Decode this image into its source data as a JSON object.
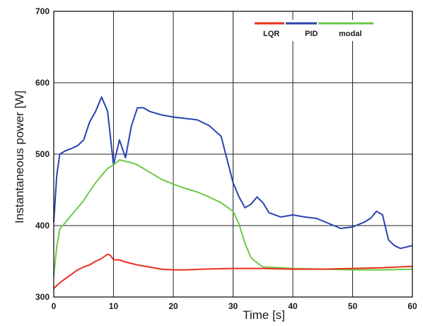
{
  "chart_data": {
    "type": "line",
    "title": "",
    "xlabel": "Time [s]",
    "ylabel": "Instantaneous power [W]",
    "xlim": [
      0,
      60
    ],
    "ylim": [
      300,
      700
    ],
    "xticks": [
      "0",
      "10",
      "20",
      "30",
      "40",
      "50",
      "60"
    ],
    "yticks": [
      "300",
      "400",
      "500",
      "600",
      "700"
    ],
    "grid": true,
    "legend_position": "top-right",
    "series": [
      {
        "name": "LQR",
        "color": "#e8311a",
        "x": [
          0,
          1,
          2,
          3,
          4,
          5,
          6,
          7,
          8,
          9,
          9.5,
          10,
          11,
          12,
          14,
          16,
          18,
          20,
          22,
          25,
          30,
          35,
          40,
          45,
          50,
          55,
          60
        ],
        "y": [
          312,
          320,
          326,
          332,
          338,
          342,
          345,
          350,
          354,
          360,
          358,
          352,
          352,
          349,
          345,
          342,
          339,
          338,
          338,
          339,
          340,
          340,
          339,
          339,
          340,
          341,
          343
        ]
      },
      {
        "name": "PID",
        "color": "#2a43b0",
        "x": [
          0,
          0.5,
          1,
          2,
          3,
          4,
          5,
          6,
          7,
          8,
          9,
          10,
          11,
          12,
          13,
          14,
          15,
          16,
          18,
          20,
          22,
          24,
          26,
          28,
          30,
          31,
          32,
          33,
          34,
          35,
          36,
          38,
          40,
          42,
          44,
          46,
          48,
          50,
          52,
          53,
          54,
          55,
          56,
          57,
          58,
          60
        ],
        "y": [
          405,
          470,
          500,
          505,
          508,
          512,
          520,
          545,
          560,
          580,
          560,
          485,
          520,
          495,
          540,
          565,
          565,
          560,
          555,
          552,
          550,
          548,
          540,
          525,
          460,
          440,
          425,
          430,
          440,
          432,
          418,
          412,
          415,
          412,
          410,
          403,
          396,
          398,
          405,
          410,
          420,
          415,
          380,
          372,
          368,
          372
        ]
      },
      {
        "name": "modal",
        "color": "#6dc848",
        "x": [
          0,
          0.5,
          1,
          2,
          3,
          4,
          5,
          6,
          7,
          8,
          9,
          10,
          11,
          12,
          13,
          14,
          16,
          18,
          20,
          22,
          24,
          26,
          28,
          30,
          31,
          32,
          33,
          34,
          35,
          38,
          40,
          45,
          50,
          55,
          60
        ],
        "y": [
          330,
          370,
          395,
          405,
          415,
          425,
          435,
          448,
          460,
          470,
          480,
          485,
          492,
          490,
          488,
          485,
          475,
          465,
          458,
          452,
          447,
          440,
          432,
          420,
          402,
          375,
          355,
          348,
          342,
          341,
          340,
          339,
          338,
          338,
          339
        ]
      }
    ]
  }
}
